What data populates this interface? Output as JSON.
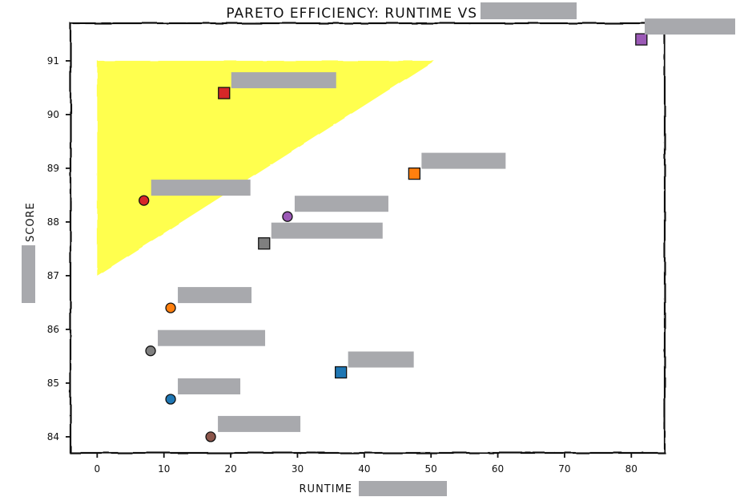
{
  "chart_data": {
    "type": "scatter",
    "title": "PARETO EFFICIENCY: RUNTIME VS",
    "xlabel": "RUNTIME",
    "ylabel": "SCORE",
    "xlim": [
      -4,
      85
    ],
    "ylim": [
      83.7,
      91.7
    ],
    "xticks": [
      0,
      10,
      20,
      30,
      40,
      50,
      60,
      70,
      80
    ],
    "yticks": [
      84,
      85,
      86,
      87,
      88,
      89,
      90,
      91
    ],
    "grid": false,
    "legend": "none",
    "highlight_region": {
      "type": "polygon",
      "color": "#ffff44",
      "points": [
        [
          0,
          91
        ],
        [
          50.5,
          91
        ],
        [
          0,
          87
        ]
      ]
    },
    "points": [
      {
        "x": 81.5,
        "y": 91.4,
        "marker": "square",
        "color": "#9b59b6"
      },
      {
        "x": 19,
        "y": 90.4,
        "marker": "square",
        "color": "#d62728"
      },
      {
        "x": 47.5,
        "y": 88.9,
        "marker": "square",
        "color": "#ff7f0e"
      },
      {
        "x": 7,
        "y": 88.4,
        "marker": "circle",
        "color": "#d62728"
      },
      {
        "x": 28.5,
        "y": 88.1,
        "marker": "circle",
        "color": "#9b59b6"
      },
      {
        "x": 25,
        "y": 87.6,
        "marker": "square",
        "color": "#7f7f7f"
      },
      {
        "x": 11,
        "y": 86.4,
        "marker": "circle",
        "color": "#ff7f0e"
      },
      {
        "x": 8,
        "y": 85.6,
        "marker": "circle",
        "color": "#7f7f7f"
      },
      {
        "x": 36.5,
        "y": 85.2,
        "marker": "square",
        "color": "#1f77b4"
      },
      {
        "x": 11,
        "y": 84.7,
        "marker": "circle",
        "color": "#1f77b4"
      },
      {
        "x": 17,
        "y": 84.0,
        "marker": "circle",
        "color": "#8c564b"
      }
    ]
  }
}
